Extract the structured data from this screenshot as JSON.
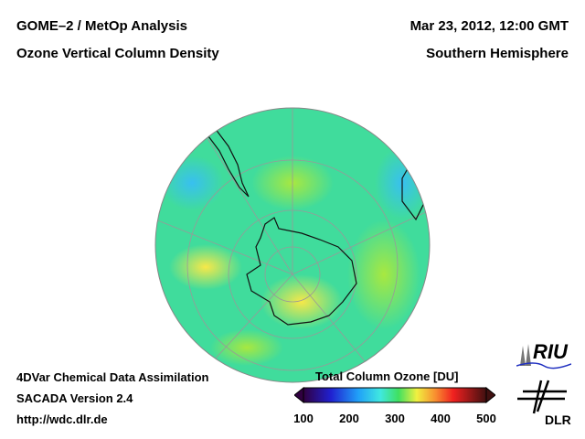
{
  "header": {
    "title_left_1": "GOME–2 / MetOp Analysis",
    "title_left_2": "Ozone Vertical Column Density",
    "title_right_1": "Mar 23, 2012, 12:00 GMT",
    "title_right_2": "Southern Hemisphere"
  },
  "footer": {
    "line1": "4DVar Chemical Data Assimilation",
    "line2": "SACADA Version 2.4",
    "line3": "http://wdc.dlr.de"
  },
  "colorbar": {
    "title": "Total Column Ozone [DU]",
    "ticks": [
      "100",
      "200",
      "300",
      "400",
      "500"
    ],
    "range": [
      100,
      500
    ]
  },
  "logos": {
    "riu": "RIU",
    "dlr": "DLR"
  },
  "colors": {
    "base": "#3fe08c",
    "high": "#f0e040",
    "low": "#40c8f0"
  }
}
